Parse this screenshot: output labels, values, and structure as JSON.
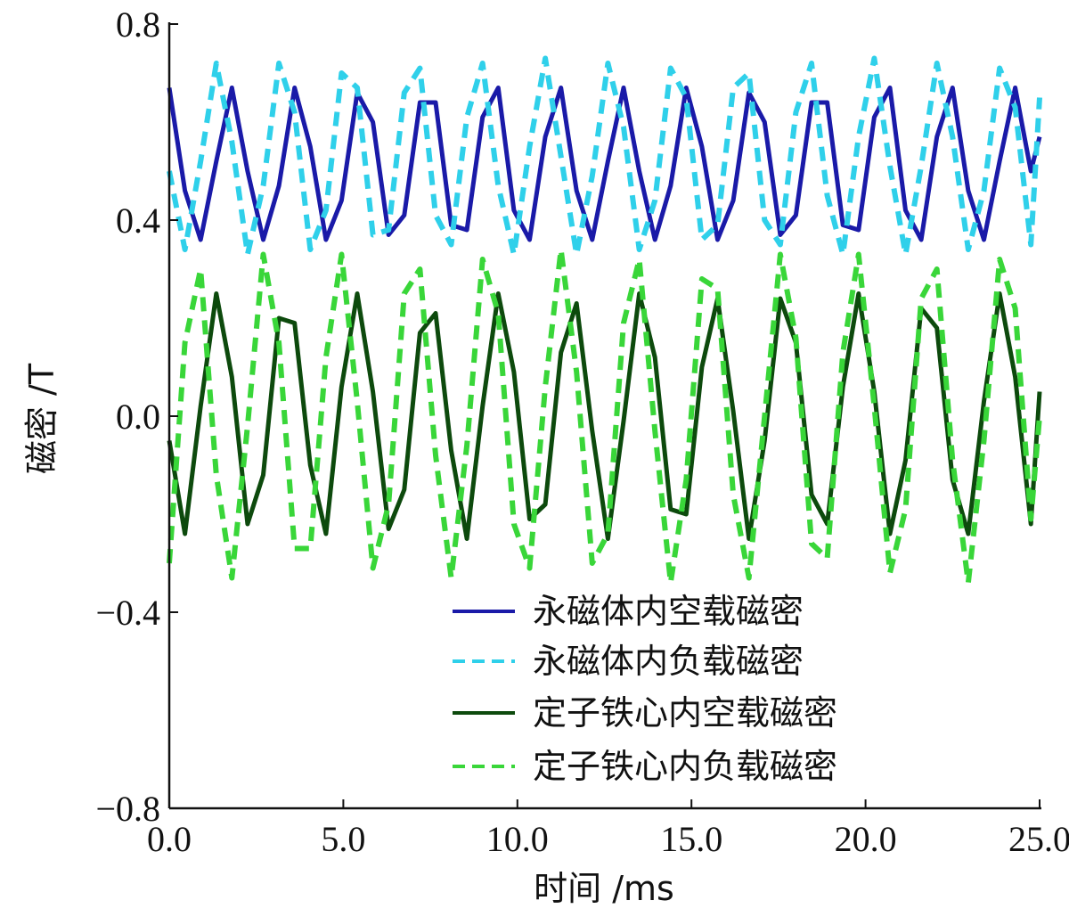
{
  "chart_data": {
    "type": "line",
    "title": "",
    "xlabel": "时间 /ms",
    "ylabel": "磁密 /T",
    "xlim": [
      0,
      25
    ],
    "ylim": [
      -0.8,
      0.8
    ],
    "x_ticks": [
      0,
      5,
      10,
      15,
      20,
      25
    ],
    "x_tick_labels": [
      "0.0",
      "5.0",
      "10.0",
      "15.0",
      "20.0",
      "25.0"
    ],
    "y_ticks": [
      -0.8,
      -0.4,
      0.0,
      0.4,
      0.8
    ],
    "y_tick_labels": [
      "−0.8",
      "−0.4",
      "0.0",
      "0.4",
      "0.8"
    ],
    "grid": false,
    "legend_position": "lower-right",
    "series": [
      {
        "name": "永磁体内空载磁密",
        "color": "#1a1aa8",
        "style": "solid",
        "x": [
          0,
          0.45,
          0.9,
          1.35,
          1.8,
          2.25,
          2.7,
          3.15,
          3.6,
          4.05,
          4.5,
          4.95,
          5.4,
          5.85,
          6.3,
          6.75,
          7.2,
          7.65,
          8.1,
          8.55,
          9.0,
          9.45,
          9.9,
          10.35,
          10.8,
          11.25,
          11.7,
          12.15,
          12.6,
          13.05,
          13.5,
          13.95,
          14.4,
          14.85,
          15.3,
          15.75,
          16.2,
          16.65,
          17.1,
          17.55,
          18.0,
          18.45,
          18.9,
          19.35,
          19.8,
          20.25,
          20.7,
          21.15,
          21.6,
          22.05,
          22.5,
          22.95,
          23.4,
          23.85,
          24.3,
          24.75,
          25.0
        ],
        "y": [
          0.67,
          0.46,
          0.36,
          0.52,
          0.67,
          0.5,
          0.36,
          0.47,
          0.67,
          0.55,
          0.36,
          0.44,
          0.66,
          0.6,
          0.37,
          0.41,
          0.64,
          0.64,
          0.39,
          0.38,
          0.61,
          0.67,
          0.42,
          0.36,
          0.57,
          0.67,
          0.46,
          0.36,
          0.52,
          0.67,
          0.5,
          0.36,
          0.47,
          0.67,
          0.55,
          0.36,
          0.44,
          0.66,
          0.6,
          0.37,
          0.41,
          0.64,
          0.64,
          0.39,
          0.38,
          0.61,
          0.67,
          0.42,
          0.36,
          0.57,
          0.67,
          0.46,
          0.36,
          0.52,
          0.67,
          0.5,
          0.57
        ]
      },
      {
        "name": "永磁体内负载磁密",
        "color": "#2fd0ea",
        "style": "dashed",
        "x": [
          0,
          0.45,
          0.9,
          1.35,
          1.8,
          2.25,
          2.7,
          3.15,
          3.6,
          4.05,
          4.5,
          4.95,
          5.4,
          5.85,
          6.3,
          6.75,
          7.2,
          7.65,
          8.1,
          8.55,
          9.0,
          9.45,
          9.9,
          10.35,
          10.8,
          11.25,
          11.7,
          12.15,
          12.6,
          13.05,
          13.5,
          13.95,
          14.4,
          14.85,
          15.3,
          15.75,
          16.2,
          16.65,
          17.1,
          17.55,
          18.0,
          18.45,
          18.9,
          19.35,
          19.8,
          20.25,
          20.7,
          21.15,
          21.6,
          22.05,
          22.5,
          22.95,
          23.4,
          23.85,
          24.3,
          24.75,
          25.0
        ],
        "y": [
          0.5,
          0.34,
          0.52,
          0.72,
          0.56,
          0.33,
          0.47,
          0.72,
          0.62,
          0.34,
          0.42,
          0.7,
          0.67,
          0.37,
          0.38,
          0.66,
          0.71,
          0.41,
          0.35,
          0.61,
          0.72,
          0.47,
          0.33,
          0.55,
          0.73,
          0.53,
          0.33,
          0.49,
          0.72,
          0.59,
          0.34,
          0.44,
          0.71,
          0.65,
          0.36,
          0.39,
          0.67,
          0.7,
          0.4,
          0.35,
          0.62,
          0.72,
          0.45,
          0.33,
          0.57,
          0.73,
          0.51,
          0.33,
          0.51,
          0.72,
          0.57,
          0.34,
          0.46,
          0.71,
          0.63,
          0.35,
          0.65
        ]
      },
      {
        "name": "定子铁心内空载磁密",
        "color": "#0d4a0d",
        "style": "solid",
        "x": [
          0,
          0.45,
          0.9,
          1.35,
          1.8,
          2.25,
          2.7,
          3.15,
          3.6,
          4.05,
          4.5,
          4.95,
          5.4,
          5.85,
          6.3,
          6.75,
          7.2,
          7.65,
          8.1,
          8.55,
          9.0,
          9.45,
          9.9,
          10.35,
          10.8,
          11.25,
          11.7,
          12.15,
          12.6,
          13.05,
          13.5,
          13.95,
          14.4,
          14.85,
          15.3,
          15.75,
          16.2,
          16.65,
          17.1,
          17.55,
          18.0,
          18.45,
          18.9,
          19.35,
          19.8,
          20.25,
          20.7,
          21.15,
          21.6,
          22.05,
          22.5,
          22.95,
          23.4,
          23.85,
          24.3,
          24.75,
          25.0
        ],
        "y": [
          -0.05,
          -0.24,
          0.02,
          0.25,
          0.08,
          -0.22,
          -0.12,
          0.2,
          0.19,
          -0.1,
          -0.24,
          0.06,
          0.25,
          0.05,
          -0.23,
          -0.15,
          0.17,
          0.21,
          -0.07,
          -0.25,
          0.02,
          0.25,
          0.09,
          -0.21,
          -0.18,
          0.13,
          0.23,
          -0.03,
          -0.25,
          -0.01,
          0.25,
          0.12,
          -0.19,
          -0.2,
          0.1,
          0.24,
          0.01,
          -0.25,
          -0.05,
          0.24,
          0.15,
          -0.16,
          -0.22,
          0.06,
          0.25,
          0.05,
          -0.24,
          -0.09,
          0.22,
          0.18,
          -0.13,
          -0.24,
          0.03,
          0.25,
          0.08,
          -0.22,
          0.05
        ]
      },
      {
        "name": "定子铁心内负载磁密",
        "color": "#39d639",
        "style": "dashed",
        "x": [
          0,
          0.45,
          0.9,
          1.35,
          1.8,
          2.25,
          2.7,
          3.15,
          3.6,
          4.05,
          4.5,
          4.95,
          5.4,
          5.85,
          6.3,
          6.75,
          7.2,
          7.65,
          8.1,
          8.55,
          9.0,
          9.45,
          9.9,
          10.35,
          10.8,
          11.25,
          11.7,
          12.15,
          12.6,
          13.05,
          13.5,
          13.95,
          14.4,
          14.85,
          15.3,
          15.75,
          16.2,
          16.65,
          17.1,
          17.55,
          18.0,
          18.45,
          18.9,
          19.35,
          19.8,
          20.25,
          20.7,
          21.15,
          21.6,
          22.05,
          22.5,
          22.95,
          23.4,
          23.85,
          24.3,
          24.75,
          25.0
        ],
        "y": [
          -0.3,
          0.15,
          0.3,
          -0.12,
          -0.33,
          -0.02,
          0.33,
          0.15,
          -0.27,
          -0.27,
          0.12,
          0.33,
          0.03,
          -0.31,
          -0.18,
          0.25,
          0.3,
          -0.08,
          -0.33,
          -0.06,
          0.32,
          0.21,
          -0.22,
          -0.31,
          0.06,
          0.34,
          0.09,
          -0.3,
          -0.24,
          0.19,
          0.32,
          -0.03,
          -0.34,
          -0.13,
          0.28,
          0.26,
          -0.16,
          -0.33,
          0.0,
          0.33,
          0.16,
          -0.26,
          -0.29,
          0.13,
          0.33,
          0.02,
          -0.32,
          -0.19,
          0.24,
          0.3,
          -0.09,
          -0.34,
          -0.05,
          0.32,
          0.22,
          -0.21,
          0.0
        ]
      }
    ]
  }
}
